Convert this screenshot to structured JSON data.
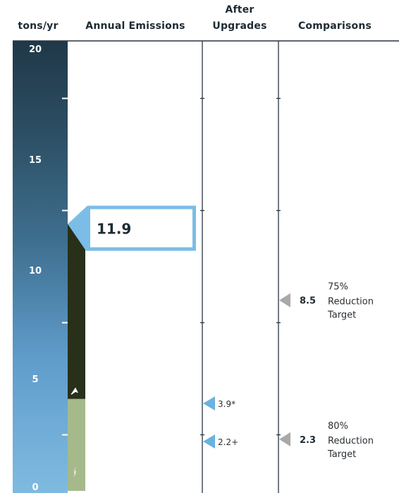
{
  "headers": {
    "units": "tons/yr",
    "annual": "Annual Emissions",
    "after_line1": "After",
    "after_line2": "Upgrades",
    "comparisons": "Comparisons"
  },
  "chart_data": {
    "type": "bar",
    "ylim": [
      0,
      20
    ],
    "y_ticks": [
      "0",
      "5",
      "10",
      "15",
      "20"
    ],
    "annual_emissions": {
      "value": 11.9,
      "label": "11.9",
      "segments": [
        {
          "from": 0,
          "to": 4.1,
          "color": "#a6b98b"
        },
        {
          "from": 4.1,
          "to": 11.9,
          "color": "#28301a"
        }
      ]
    },
    "after_upgrades": [
      {
        "value": 3.9,
        "label": "3.9*"
      },
      {
        "value": 2.2,
        "label": "2.2+"
      }
    ],
    "comparisons": [
      {
        "value": 8.5,
        "value_label": "8.5",
        "lines": [
          "75%",
          "Reduction",
          "Target"
        ]
      },
      {
        "value": 2.3,
        "value_label": "2.3",
        "lines": [
          "80%",
          "Reduction",
          "Target"
        ]
      }
    ],
    "colors": {
      "scale_bottom": "#7fbbe0",
      "scale_top": "#203848",
      "callout": "#7bbde6",
      "marker_after": "#6ab2e0",
      "marker_comparison": "#a9a9a9",
      "divider": "#2a3340"
    }
  }
}
